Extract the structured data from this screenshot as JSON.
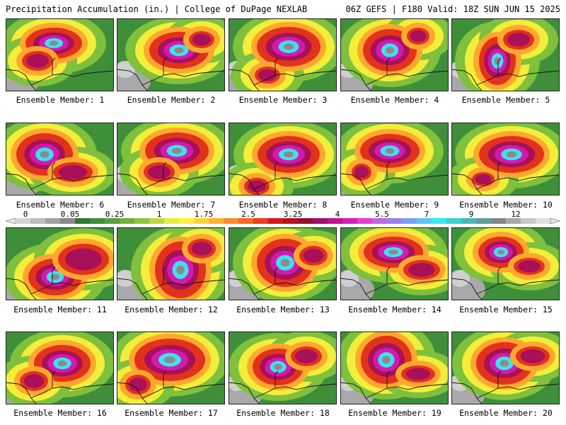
{
  "header": {
    "left": "Precipitation Accumulation (in.) | College of DuPage NEXLAB",
    "right": "06Z GEFS | F180 Valid: 18Z SUN JUN 15 2025"
  },
  "colorbar": {
    "labels": [
      "0",
      "0.05",
      "0.25",
      "1",
      "1.75",
      "2.5",
      "3.25",
      "4",
      "5.5",
      "7",
      "9",
      "12"
    ],
    "colors": [
      "#d4d4d4",
      "#bdbdbd",
      "#a2a2a2",
      "#8a8a8a",
      "#2e7a2e",
      "#3f8f3a",
      "#55a242",
      "#6eb33f",
      "#8ec73c",
      "#b8dc3c",
      "#e3ee3a",
      "#fff23a",
      "#ffd23a",
      "#ffb030",
      "#ff8c28",
      "#ff6420",
      "#f03c1c",
      "#d81818",
      "#b81420",
      "#961030",
      "#a0106a",
      "#c0148e",
      "#dc1cb4",
      "#ea3ad6",
      "#c06ae0",
      "#9c80f0",
      "#7aa0f6",
      "#5ac8f6",
      "#38e8f4",
      "#3ad2d2",
      "#48b8b8",
      "#609e9e",
      "#868686",
      "#a8a8a8",
      "#c8c8c8",
      "#e0e0e0"
    ]
  },
  "members": [
    {
      "caption": "Ensemble Member: 1"
    },
    {
      "caption": "Ensemble Member: 2"
    },
    {
      "caption": "Ensemble Member: 3"
    },
    {
      "caption": "Ensemble Member: 4"
    },
    {
      "caption": "Ensemble Member: 5"
    },
    {
      "caption": "Ensemble Member: 6"
    },
    {
      "caption": "Ensemble Member: 7"
    },
    {
      "caption": "Ensemble Member: 8"
    },
    {
      "caption": "Ensemble Member: 9"
    },
    {
      "caption": "Ensemble Member: 10"
    },
    {
      "caption": "Ensemble Member: 11"
    },
    {
      "caption": "Ensemble Member: 12"
    },
    {
      "caption": "Ensemble Member: 13"
    },
    {
      "caption": "Ensemble Member: 14"
    },
    {
      "caption": "Ensemble Member: 15"
    },
    {
      "caption": "Ensemble Member: 16"
    },
    {
      "caption": "Ensemble Member: 17"
    },
    {
      "caption": "Ensemble Member: 18"
    },
    {
      "caption": "Ensemble Member: 19"
    },
    {
      "caption": "Ensemble Member: 20"
    }
  ]
}
